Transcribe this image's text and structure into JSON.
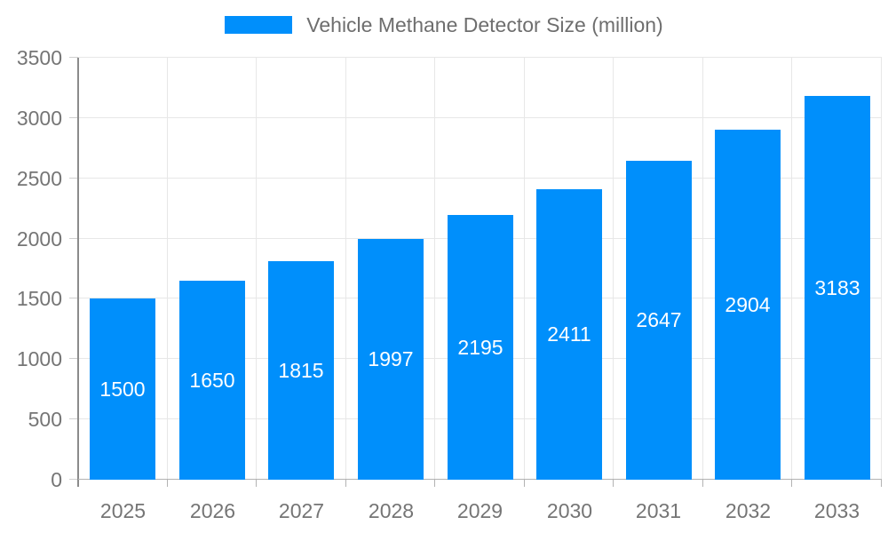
{
  "legend": {
    "items": [
      {
        "label": "Vehicle Methane Detector Size (million)",
        "color": "#008FFB"
      }
    ]
  },
  "chart_data": {
    "type": "bar",
    "title": "Vehicle Methane Detector Size (million)",
    "categories": [
      "2025",
      "2026",
      "2027",
      "2028",
      "2029",
      "2030",
      "2031",
      "2032",
      "2033"
    ],
    "series": [
      {
        "name": "Vehicle Methane Detector Size (million)",
        "values": [
          1500,
          1650,
          1815,
          1997,
          2195,
          2411,
          2647,
          2904,
          3183
        ]
      }
    ],
    "xlabel": "",
    "ylabel": "",
    "ylim": [
      0,
      3500
    ],
    "ytick_step": 500,
    "yticks": [
      0,
      500,
      1000,
      1500,
      2000,
      2500,
      3000,
      3500
    ],
    "grid": true,
    "legend_position": "top",
    "data_labels": "inside-center"
  },
  "colors": {
    "bar": "#008FFB",
    "bar_label": "#FFFFFF",
    "grid": "#E7E7E7",
    "axis_y_line": "#8B8B8B",
    "axis_x_line": "#B3B3B3",
    "tick_y": "#CFCFCF",
    "tick_x": "#B3B3B3",
    "axis_label": "#757575",
    "legend_text": "#6E6E6E",
    "background": "#FFFFFF"
  }
}
